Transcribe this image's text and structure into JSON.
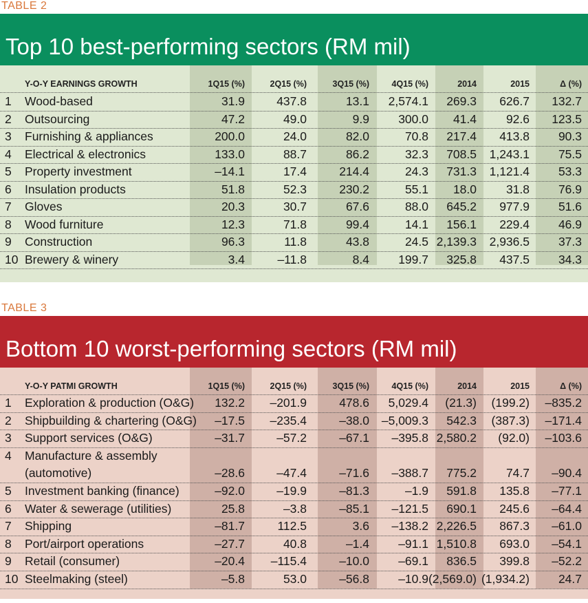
{
  "table2": {
    "label": "TABLE 2",
    "title": "Top 10 best-performing sectors (RM mil)",
    "colors": {
      "banner": "#0a8f5e",
      "bg": "#dfe8d2",
      "shade": "#c6d1b6"
    },
    "headers": [
      "Y-O-Y EARNINGS GROWTH",
      "1Q15 (%)",
      "2Q15 (%)",
      "3Q15 (%)",
      "4Q15 (%)",
      "2014",
      "2015",
      "Δ (%)"
    ],
    "rows": [
      {
        "rank": "1",
        "name": "Wood-based",
        "vals": [
          "31.9",
          "437.8",
          "13.1",
          "2,574.1",
          "269.3",
          "626.7",
          "132.7"
        ]
      },
      {
        "rank": "2",
        "name": "Outsourcing",
        "vals": [
          "47.2",
          "49.0",
          "9.9",
          "300.0",
          "41.4",
          "92.6",
          "123.5"
        ]
      },
      {
        "rank": "3",
        "name": "Furnishing & appliances",
        "vals": [
          "200.0",
          "24.0",
          "82.0",
          "70.8",
          "217.4",
          "413.8",
          "90.3"
        ]
      },
      {
        "rank": "4",
        "name": "Electrical & electronics",
        "vals": [
          "133.0",
          "88.7",
          "86.2",
          "32.3",
          "708.5",
          "1,243.1",
          "75.5"
        ]
      },
      {
        "rank": "5",
        "name": "Property investment",
        "vals": [
          "-14.1",
          "17.4",
          "214.4",
          "24.3",
          "731.3",
          "1,121.4",
          "53.3"
        ]
      },
      {
        "rank": "6",
        "name": "Insulation products",
        "vals": [
          "51.8",
          "52.3",
          "230.2",
          "55.1",
          "18.0",
          "31.8",
          "76.9"
        ]
      },
      {
        "rank": "7",
        "name": "Gloves",
        "vals": [
          "20.3",
          "30.7",
          "67.6",
          "88.0",
          "645.2",
          "977.9",
          "51.6"
        ]
      },
      {
        "rank": "8",
        "name": "Wood furniture",
        "vals": [
          "12.3",
          "71.8",
          "99.4",
          "14.1",
          "156.1",
          "229.4",
          "46.9"
        ]
      },
      {
        "rank": "9",
        "name": "Construction",
        "vals": [
          "96.3",
          "11.8",
          "43.8",
          "24.5",
          "2,139.3",
          "2,936.5",
          "37.3"
        ]
      },
      {
        "rank": "10",
        "name": "Brewery & winery",
        "vals": [
          "3.4",
          "-11.8",
          "8.4",
          "199.7",
          "325.8",
          "437.5",
          "34.3"
        ]
      }
    ]
  },
  "table3": {
    "label": "TABLE 3",
    "title": "Bottom 10 worst-performing sectors (RM mil)",
    "colors": {
      "banner": "#b8262e",
      "bg": "#ecd2c8",
      "shade": "#cfb0a6"
    },
    "headers": [
      "Y-O-Y PATMI GROWTH",
      "1Q15 (%)",
      "2Q15 (%)",
      "3Q15 (%)",
      "4Q15 (%)",
      "2014",
      "2015",
      "Δ (%)"
    ],
    "rows": [
      {
        "rank": "1",
        "name": "Exploration & production (O&G)",
        "vals": [
          "132.2",
          "-201.9",
          "478.6",
          "5,029.4",
          "(21.3)",
          "(199.2)",
          "-835.2"
        ]
      },
      {
        "rank": "2",
        "name": "Shipbuilding & chartering (O&G)",
        "vals": [
          "-17.5",
          "-235.4",
          "-38.0",
          "-5,009.3",
          "542.3",
          "(387.3)",
          "-171.4"
        ]
      },
      {
        "rank": "3",
        "name": "Support services (O&G)",
        "vals": [
          "-31.7",
          "-57.2",
          "-67.1",
          "-395.8",
          "2,580.2",
          "(92.0)",
          "-103.6"
        ]
      },
      {
        "rank": "4",
        "name": "Manufacture & assembly",
        "name2": "(automotive)",
        "vals": [
          "-28.6",
          "-47.4",
          "-71.6",
          "-388.7",
          "775.2",
          "74.7",
          "-90.4"
        ]
      },
      {
        "rank": "5",
        "name": "Investment banking (finance)",
        "vals": [
          "-92.0",
          "-19.9",
          "-81.3",
          "-1.9",
          "591.8",
          "135.8",
          "-77.1"
        ]
      },
      {
        "rank": "6",
        "name": "Water & sewerage (utilities)",
        "vals": [
          "25.8",
          "-3.8",
          "-85.1",
          "-121.5",
          "690.1",
          "245.6",
          "-64.4"
        ]
      },
      {
        "rank": "7",
        "name": "Shipping",
        "vals": [
          "-81.7",
          "112.5",
          "3.6",
          "-138.2",
          "2,226.5",
          "867.3",
          "-61.0"
        ]
      },
      {
        "rank": "8",
        "name": "Port/airport operations",
        "vals": [
          "-27.7",
          "40.8",
          "-1.4",
          "-91.1",
          "1,510.8",
          "693.0",
          "-54.1"
        ]
      },
      {
        "rank": "9",
        "name": "Retail (consumer)",
        "vals": [
          "-20.4",
          "-115.4",
          "-10.0",
          "-69.1",
          "836.5",
          "399.8",
          "-52.2"
        ]
      },
      {
        "rank": "10",
        "name": "Steelmaking (steel)",
        "vals": [
          "-5.8",
          "53.0",
          "-56.8",
          "-10.9",
          "(2,569.0)",
          "(1,934.2)",
          "24.7"
        ]
      }
    ]
  }
}
